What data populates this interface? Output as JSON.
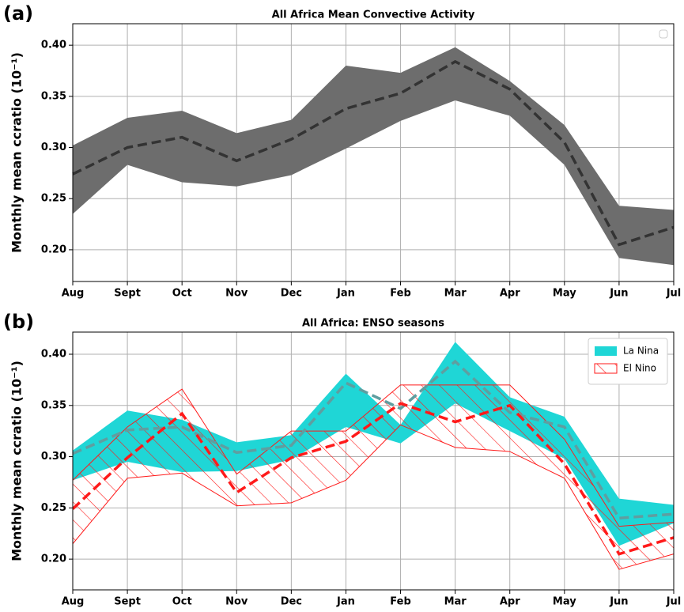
{
  "chart_data": [
    {
      "type": "band-line",
      "panel_label": "(a)",
      "title": "All Africa Mean Convective Activity",
      "ylabel": "Monthly mean ccratio (10⁻¹)",
      "categories": [
        "Aug",
        "Sept",
        "Oct",
        "Nov",
        "Dec",
        "Jan",
        "Feb",
        "Mar",
        "Apr",
        "May",
        "Jun",
        "Jul"
      ],
      "series": [
        {
          "color": "#6d6d6d",
          "line_color": "#333333",
          "values": [
            0.274,
            0.3,
            0.31,
            0.287,
            0.308,
            0.338,
            0.353,
            0.384,
            0.357,
            0.305,
            0.205,
            0.222
          ],
          "upper": [
            0.302,
            0.329,
            0.336,
            0.314,
            0.327,
            0.38,
            0.373,
            0.398,
            0.365,
            0.322,
            0.243,
            0.239
          ],
          "lower": [
            0.235,
            0.283,
            0.266,
            0.262,
            0.273,
            0.299,
            0.326,
            0.346,
            0.331,
            0.283,
            0.192,
            0.185
          ]
        }
      ],
      "ylim": [
        0.169,
        0.421
      ],
      "yticks": [
        {
          "value": 0.2,
          "label": "0.20"
        },
        0.25,
        {
          "value": 0.3,
          "label": "0.30"
        },
        0.35,
        {
          "value": 0.4,
          "label": "0.40"
        }
      ],
      "grid": true,
      "legend": "upper right"
    },
    {
      "type": "band-line",
      "panel_label": "(b)",
      "title": "All Africa: ENSO seasons",
      "ylabel": "Monthly mean ccratio (10⁻¹)",
      "categories": [
        "Aug",
        "Sept",
        "Oct",
        "Nov",
        "Dec",
        "Jan",
        "Feb",
        "Mar",
        "Apr",
        "May",
        "Jun",
        "Jul"
      ],
      "series": [
        {
          "name": "La Nina",
          "color": "#1fd6d6",
          "line_color": "#5f9ea0",
          "values": [
            0.303,
            0.326,
            0.329,
            0.304,
            0.311,
            0.372,
            0.347,
            0.393,
            0.343,
            0.329,
            0.24,
            0.244
          ],
          "upper": [
            0.306,
            0.345,
            0.336,
            0.314,
            0.321,
            0.381,
            0.331,
            0.412,
            0.358,
            0.339,
            0.259,
            0.253
          ],
          "lower": [
            0.277,
            0.295,
            0.285,
            0.286,
            0.297,
            0.329,
            0.313,
            0.352,
            0.325,
            0.298,
            0.213,
            0.235
          ]
        },
        {
          "name": "El Nino",
          "color": "#ff1a1a",
          "line_color": "#ff1a1a",
          "hatch": true,
          "values": [
            0.249,
            0.299,
            0.342,
            0.265,
            0.299,
            0.315,
            0.352,
            0.334,
            0.35,
            0.293,
            0.205,
            0.221
          ],
          "upper": [
            0.277,
            0.329,
            0.366,
            0.283,
            0.325,
            0.325,
            0.37,
            0.37,
            0.37,
            0.317,
            0.232,
            0.236
          ],
          "lower": [
            0.215,
            0.279,
            0.284,
            0.252,
            0.255,
            0.277,
            0.331,
            0.309,
            0.305,
            0.279,
            0.19,
            0.205
          ]
        }
      ],
      "ylim": [
        0.17,
        0.4216
      ],
      "yticks": [
        {
          "value": 0.2,
          "label": "0.20"
        },
        0.25,
        {
          "value": 0.3,
          "label": "0.30"
        },
        0.35,
        {
          "value": 0.4,
          "label": "0.40"
        }
      ],
      "grid": true,
      "legend": "upper right"
    }
  ]
}
